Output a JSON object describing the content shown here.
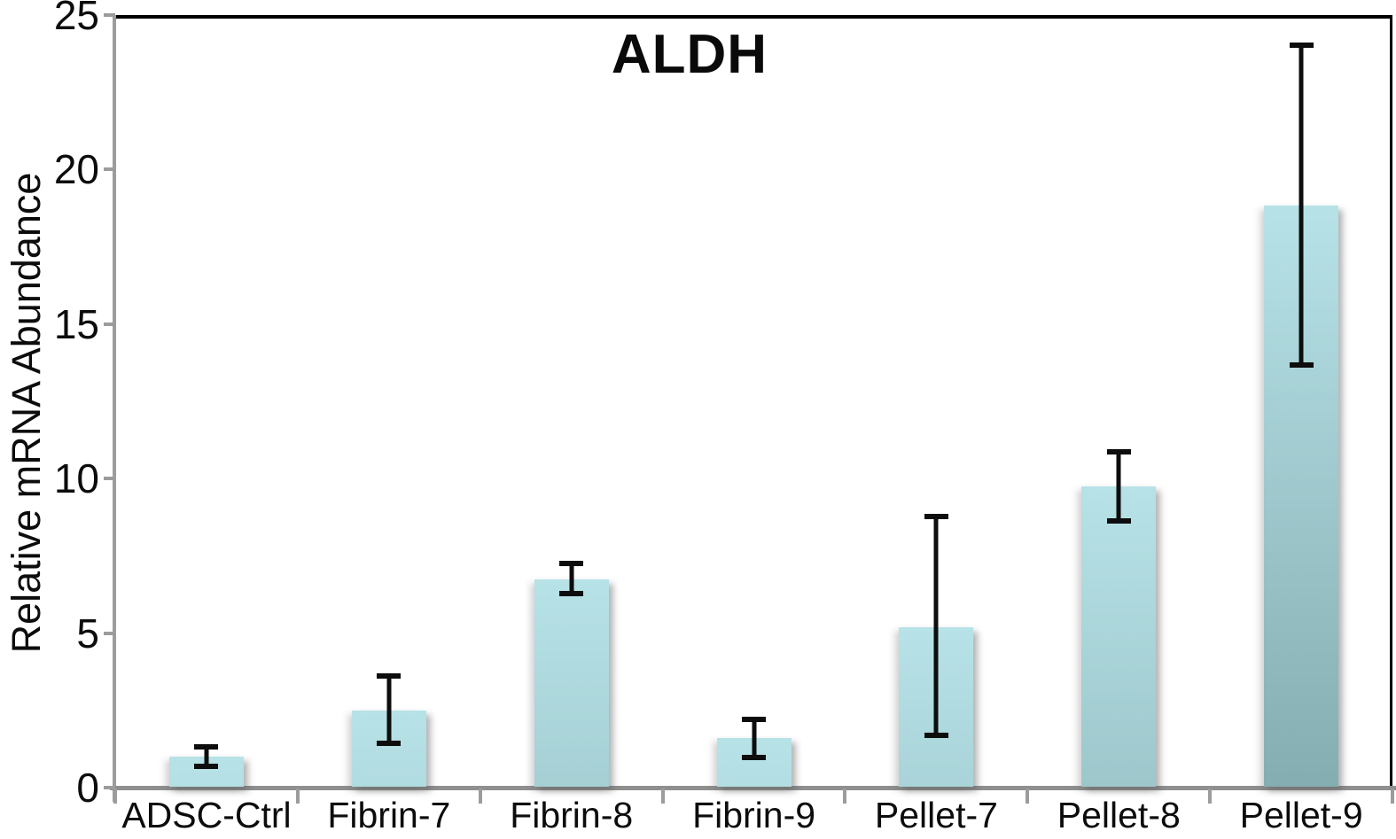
{
  "chart_data": {
    "type": "bar",
    "title": "ALDH",
    "ylabel": "Relative mRNA Abundance",
    "xlabel": "",
    "categories": [
      "ADSC-Ctrl",
      "Fibrin-7",
      "Fibrin-8",
      "Fibrin-9",
      "Pellet-7",
      "Pellet-8",
      "Pellet-9"
    ],
    "values": [
      1.0,
      2.5,
      6.75,
      1.6,
      5.2,
      9.75,
      18.85
    ],
    "error_high": [
      1.4,
      3.7,
      7.35,
      2.3,
      8.85,
      10.95,
      24.1
    ],
    "error_low": [
      0.6,
      1.35,
      6.2,
      0.9,
      1.6,
      8.55,
      13.6
    ],
    "ylim": [
      0,
      25
    ],
    "yticks": [
      0,
      5,
      10,
      15,
      20,
      25
    ],
    "grid": false,
    "legend": null,
    "colors": {
      "bar_top": "#b7e2e7",
      "bar_bottom": "#84adb1",
      "error": "#0d0d0d",
      "axis": "#9c9c9c",
      "plot_border": "#000000",
      "text": "#0c0c0c"
    }
  }
}
